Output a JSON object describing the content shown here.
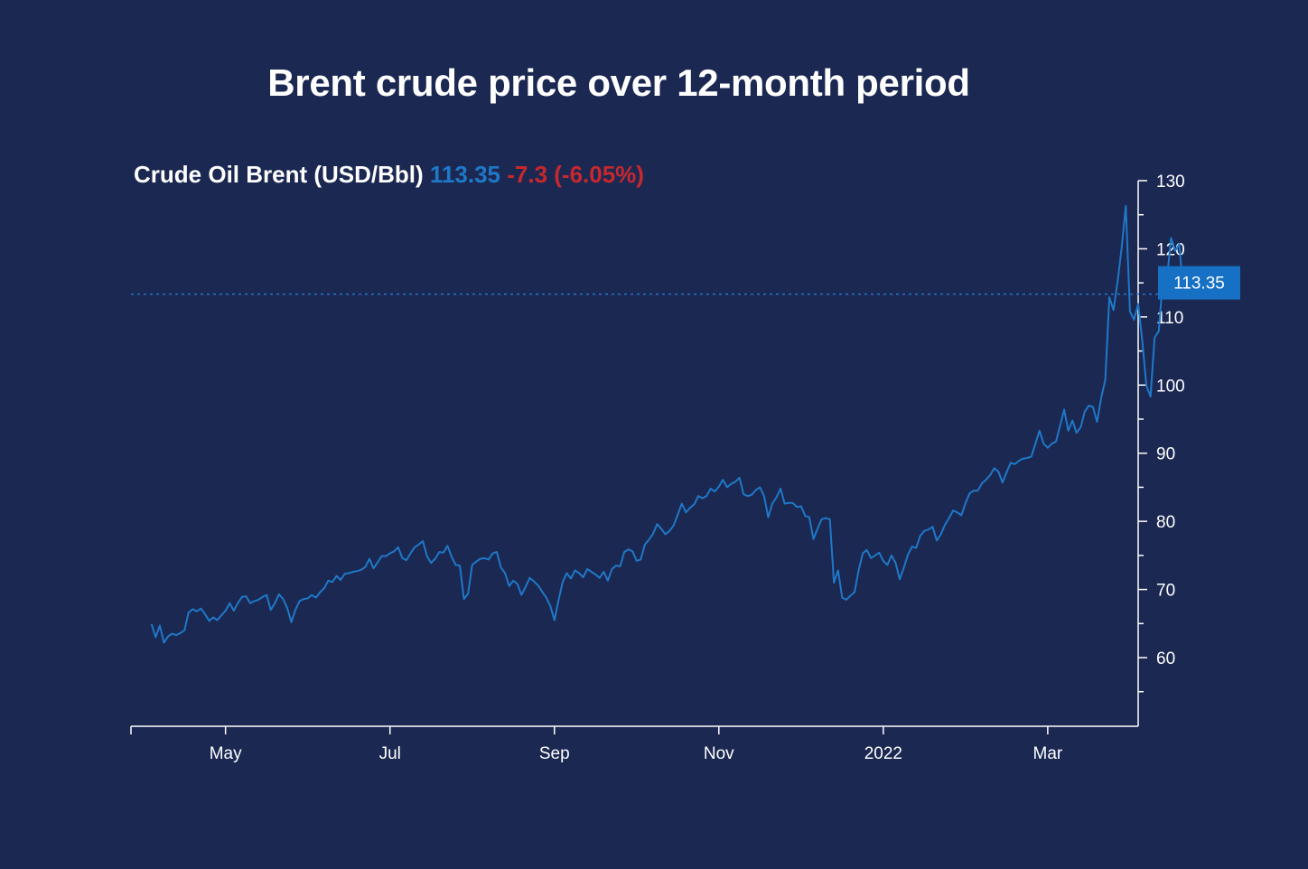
{
  "title": "Brent crude price over 12-month period",
  "header": {
    "label": "Crude Oil Brent (USD/Bbl)",
    "last": "113.35",
    "change": "-7.3 (-6.05%)"
  },
  "colors": {
    "background": "#1b2852",
    "line": "#1f78c8",
    "negative": "#c7282e",
    "axis": "#ffffff",
    "badge": "#1670c4"
  },
  "chart_data": {
    "type": "line",
    "title": "Brent crude price over 12-month period",
    "xlabel": "",
    "ylabel": "",
    "ylim": [
      50,
      131
    ],
    "yticks": [
      60,
      70,
      80,
      90,
      100,
      110,
      120,
      130
    ],
    "x_tick_labels": [
      {
        "label": "May",
        "index": 18
      },
      {
        "label": "Jul",
        "index": 58
      },
      {
        "label": "Sep",
        "index": 98
      },
      {
        "label": "Nov",
        "index": 138
      },
      {
        "label": "2022",
        "index": 178
      },
      {
        "label": "Mar",
        "index": 218
      }
    ],
    "x_range": [
      -5,
      240
    ],
    "current_value": 113.35,
    "current_label": "113.35",
    "series": [
      {
        "name": "Crude Oil Brent (USD/Bbl)",
        "values": [
          64.9,
          63.0,
          64.7,
          62.2,
          63.1,
          63.5,
          63.3,
          63.6,
          64.0,
          66.6,
          67.1,
          66.8,
          67.2,
          66.4,
          65.4,
          65.9,
          65.5,
          66.2,
          66.9,
          68.0,
          66.9,
          68.0,
          68.9,
          69.0,
          68.0,
          68.3,
          68.5,
          68.9,
          69.2,
          67.0,
          68.0,
          69.3,
          68.6,
          67.3,
          65.2,
          67.0,
          68.3,
          68.6,
          68.7,
          69.2,
          68.8,
          69.6,
          70.2,
          71.3,
          71.1,
          72.0,
          71.4,
          72.3,
          72.4,
          72.6,
          72.7,
          72.9,
          73.3,
          74.5,
          73.1,
          74.0,
          74.9,
          74.9,
          75.3,
          75.6,
          76.2,
          74.6,
          74.3,
          75.3,
          76.2,
          76.6,
          77.1,
          74.9,
          73.9,
          74.5,
          75.5,
          75.4,
          76.4,
          74.8,
          73.6,
          73.5,
          68.6,
          69.4,
          73.6,
          74.1,
          74.5,
          74.6,
          74.4,
          75.3,
          75.5,
          73.2,
          72.4,
          70.5,
          71.3,
          70.8,
          69.2,
          70.4,
          71.7,
          71.2,
          70.6,
          69.7,
          68.8,
          67.6,
          65.5,
          68.4,
          71.1,
          72.4,
          71.6,
          72.8,
          72.4,
          71.8,
          73.0,
          72.6,
          72.2,
          71.7,
          72.6,
          71.3,
          73.0,
          73.5,
          73.4,
          75.5,
          75.9,
          75.6,
          74.2,
          74.4,
          76.6,
          77.3,
          78.2,
          79.6,
          78.9,
          78.1,
          78.6,
          79.4,
          81.0,
          82.6,
          81.3,
          82.0,
          82.5,
          83.7,
          83.4,
          83.7,
          84.8,
          84.4,
          85.1,
          86.1,
          85.0,
          85.5,
          85.8,
          86.4,
          84.0,
          83.7,
          83.9,
          84.6,
          85.0,
          83.7,
          80.6,
          82.6,
          83.5,
          84.8,
          82.6,
          82.7,
          82.7,
          82.1,
          82.2,
          80.8,
          80.6,
          77.4,
          78.9,
          80.3,
          80.5,
          80.3,
          71.0,
          72.8,
          68.8,
          68.5,
          69.1,
          69.6,
          72.8,
          75.3,
          75.8,
          74.6,
          75.0,
          75.4,
          74.2,
          73.6,
          75.0,
          73.9,
          71.5,
          73.2,
          75.1,
          76.3,
          76.1,
          77.9,
          78.6,
          78.8,
          79.2,
          77.2,
          78.1,
          79.5,
          80.5,
          81.6,
          81.3,
          80.9,
          82.7,
          84.1,
          84.5,
          84.5,
          85.6,
          86.1,
          86.8,
          87.8,
          87.3,
          85.7,
          87.2,
          88.6,
          88.4,
          88.9,
          89.2,
          89.3,
          89.5,
          91.4,
          93.3,
          91.4,
          90.8,
          91.4,
          91.7,
          94.0,
          96.4,
          93.3,
          94.8,
          93.0,
          93.8,
          96.1,
          97.0,
          96.8,
          94.6,
          98.1,
          100.8,
          112.9,
          111.0,
          115.2,
          120.2,
          126.3,
          110.8,
          109.6,
          111.9,
          106.4,
          99.9,
          98.3,
          107.0,
          107.9,
          115.6,
          115.6,
          121.6,
          119.7,
          120.7,
          113.35
        ]
      }
    ]
  }
}
